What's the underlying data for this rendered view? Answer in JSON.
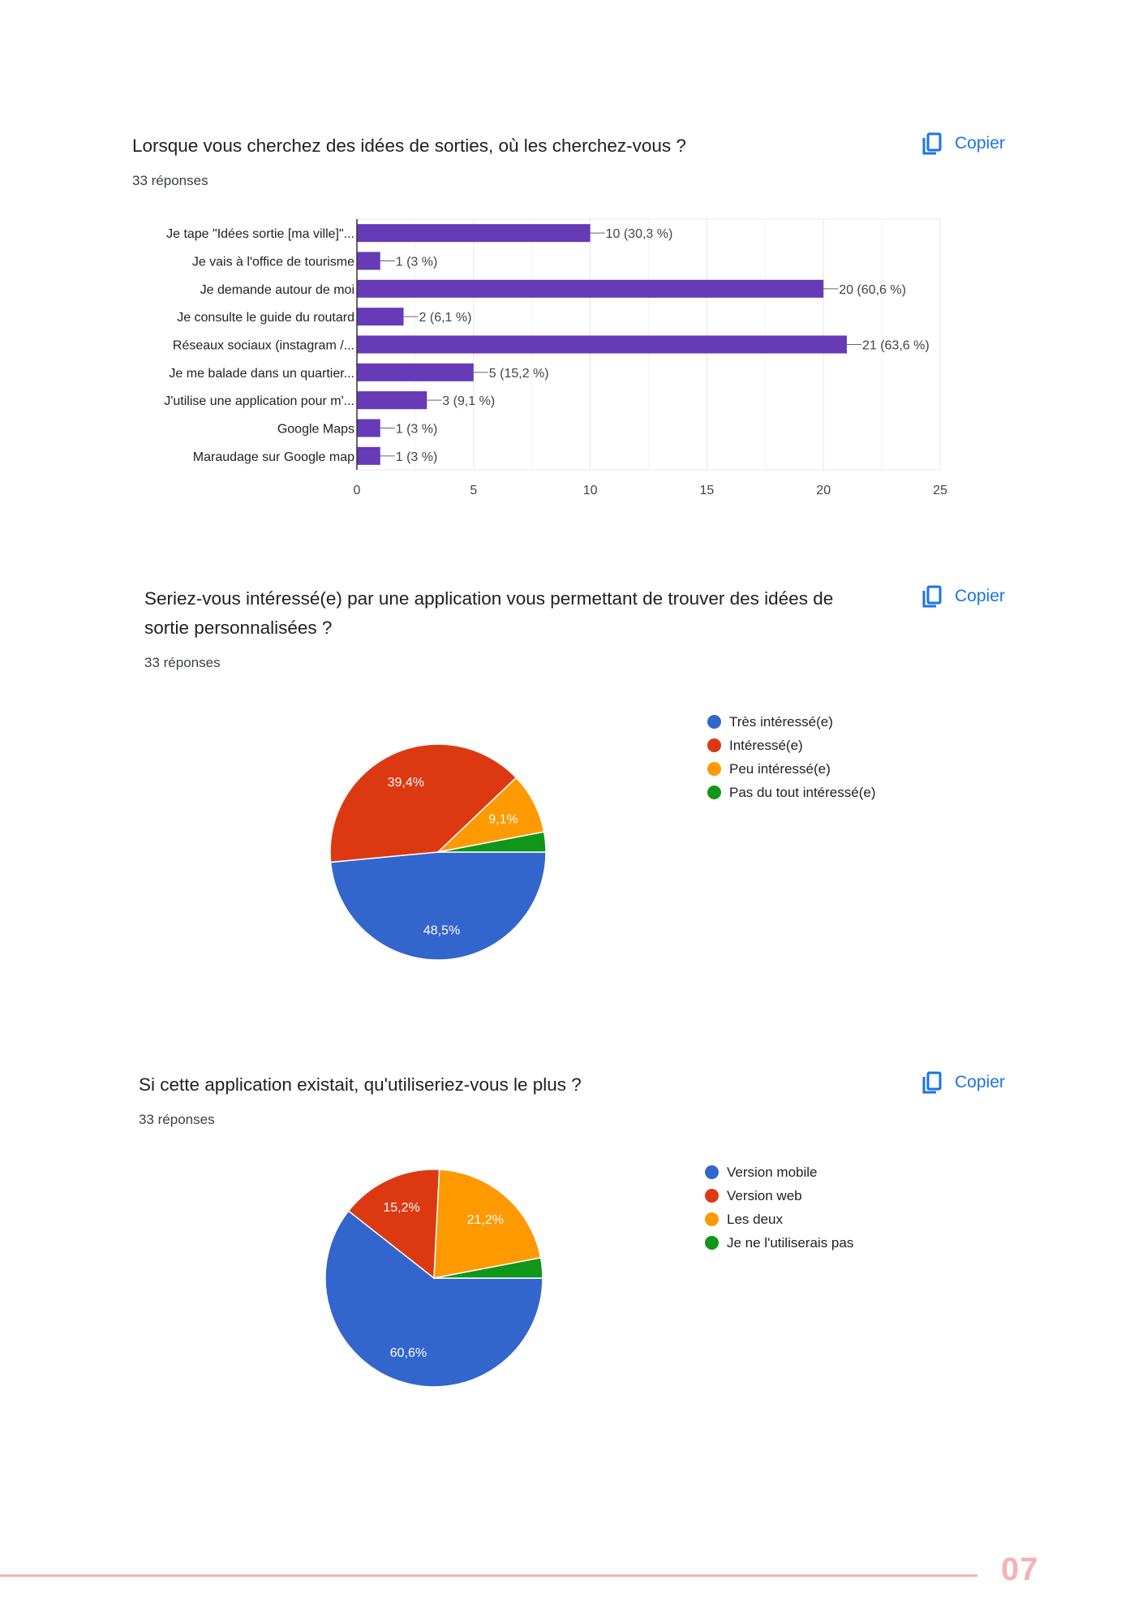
{
  "questions": [
    {
      "title": "Lorsque vous cherchez des idées de sorties, où les cherchez-vous ?",
      "responses": "33 réponses",
      "copy_label": "Copier"
    },
    {
      "title_line1": "Seriez-vous intéressé(e) par une application vous permettant de trouver des idées de",
      "title_line2": "sortie personnalisées ?",
      "responses": "33 réponses",
      "copy_label": "Copier"
    },
    {
      "title": "Si cette application existait, qu'utiliseriez-vous le plus ?",
      "responses": "33 réponses",
      "copy_label": "Copier"
    }
  ],
  "chart_data": [
    {
      "type": "bar",
      "orientation": "horizontal",
      "categories": [
        "Je tape \"Idées sortie [ma ville]\"...",
        "Je vais à l'office de tourisme",
        "Je demande autour de moi",
        "Je consulte le guide du routard",
        "Réseaux sociaux (instagram /...",
        "Je me balade dans un quartier...",
        "J'utilise une application pour m'...",
        "Google Maps",
        "Maraudage sur Google map"
      ],
      "values": [
        10,
        1,
        20,
        2,
        21,
        5,
        3,
        1,
        1
      ],
      "value_labels": [
        "10 (30,3 %)",
        "1 (3 %)",
        "20 (60,6 %)",
        "2 (6,1 %)",
        "21 (63,6 %)",
        "5 (15,2 %)",
        "3 (9,1 %)",
        "1 (3 %)",
        "1 (3 %)"
      ],
      "xlim": [
        0,
        25
      ],
      "xticks": [
        "0",
        "5",
        "10",
        "15",
        "20",
        "25"
      ],
      "color": "#673ab7",
      "grid": true
    },
    {
      "type": "pie",
      "labels": [
        "Très intéressé(e)",
        "Intéressé(e)",
        "Peu intéressé(e)",
        "Pas du tout intéressé(e)"
      ],
      "values": [
        48.5,
        39.4,
        9.1,
        3.0
      ],
      "slice_labels": [
        "48,5%",
        "39,4%",
        "9,1%",
        ""
      ],
      "colors": [
        "#3366cc",
        "#dc3912",
        "#ff9900",
        "#109618"
      ],
      "legend": "right"
    },
    {
      "type": "pie",
      "labels": [
        "Version mobile",
        "Version web",
        "Les deux",
        "Je ne l'utiliserais pas"
      ],
      "values": [
        60.6,
        15.2,
        21.2,
        3.0
      ],
      "slice_labels": [
        "60,6%",
        "15,2%",
        "21,2%",
        ""
      ],
      "colors": [
        "#3366cc",
        "#dc3912",
        "#ff9900",
        "#109618"
      ],
      "legend": "right"
    }
  ],
  "footer": {
    "page_number": "07",
    "accent_color": "#f6b1b5"
  }
}
